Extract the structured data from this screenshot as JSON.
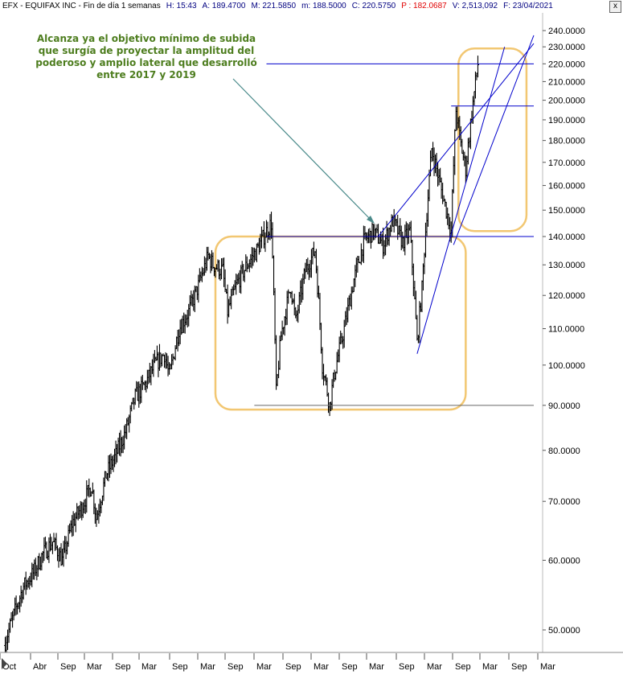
{
  "header": {
    "items": [
      {
        "text": "EFX - EQUIFAX INC - Fin de día 1 semanas",
        "color": "#000000"
      },
      {
        "text": "H: 15:43",
        "color": "#000080"
      },
      {
        "text": "A: 189.4700",
        "color": "#000080"
      },
      {
        "text": "M: 221.5850",
        "color": "#000080"
      },
      {
        "text": "m: 188.5000",
        "color": "#000080"
      },
      {
        "text": "C: 220.5750",
        "color": "#000080"
      },
      {
        "text": "P : 182.0687",
        "color": "#e00000"
      },
      {
        "text": "V: 2,513,092",
        "color": "#000080"
      },
      {
        "text": "F: 23/04/2021",
        "color": "#000080"
      }
    ],
    "close_label": "x"
  },
  "annotation": {
    "lines": [
      "Alcanza ya el objetivo mínimo de subida",
      "que surgía de proyectar la amplitud del",
      "poderoso y amplio lateral que desarrolló",
      "entre 2017 y 2019"
    ],
    "color": "#4d7d1e"
  },
  "chart_data": {
    "type": "bar",
    "style": "ohlc-weekly",
    "scale": "log",
    "ylim": [
      44,
      240
    ],
    "y_ticks": [
      50,
      60,
      70,
      80,
      90,
      100,
      110,
      120,
      130,
      140,
      150,
      160,
      170,
      180,
      190,
      200,
      210,
      220,
      230,
      240
    ],
    "y_tick_format": "4-decimals",
    "x_tick_labels": [
      "Oct",
      "Abr",
      "Sep",
      "Mar",
      "Sep",
      "Mar",
      "Sep",
      "Mar",
      "Sep",
      "Mar",
      "Sep",
      "Mar",
      "Sep",
      "Mar",
      "Sep",
      "Mar",
      "Sep",
      "Mar",
      "Sep",
      "Mar"
    ],
    "price_path": [
      [
        0,
        48
      ],
      [
        4,
        52
      ],
      [
        8,
        56
      ],
      [
        12,
        58
      ],
      [
        16,
        61
      ],
      [
        20,
        63
      ],
      [
        24,
        60
      ],
      [
        28,
        66
      ],
      [
        32,
        69
      ],
      [
        36,
        73
      ],
      [
        38,
        67
      ],
      [
        42,
        75
      ],
      [
        46,
        79
      ],
      [
        50,
        84
      ],
      [
        54,
        92
      ],
      [
        58,
        95
      ],
      [
        62,
        100
      ],
      [
        66,
        103
      ],
      [
        68,
        97
      ],
      [
        72,
        110
      ],
      [
        76,
        115
      ],
      [
        80,
        123
      ],
      [
        84,
        133
      ],
      [
        86,
        130
      ],
      [
        90,
        128
      ],
      [
        92,
        115
      ],
      [
        96,
        124
      ],
      [
        100,
        130
      ],
      [
        104,
        135
      ],
      [
        108,
        142
      ],
      [
        110,
        145
      ],
      [
        112,
        93
      ],
      [
        114,
        108
      ],
      [
        118,
        123
      ],
      [
        120,
        112
      ],
      [
        124,
        128
      ],
      [
        128,
        135
      ],
      [
        131,
        100
      ],
      [
        134,
        90
      ],
      [
        136,
        98
      ],
      [
        140,
        110
      ],
      [
        144,
        125
      ],
      [
        148,
        138
      ],
      [
        152,
        142
      ],
      [
        156,
        137
      ],
      [
        160,
        146
      ],
      [
        164,
        138
      ],
      [
        167,
        142
      ],
      [
        170,
        106
      ],
      [
        172,
        122
      ],
      [
        176,
        176
      ],
      [
        180,
        158
      ],
      [
        184,
        142
      ],
      [
        186,
        195
      ],
      [
        188,
        178
      ],
      [
        190,
        167
      ],
      [
        192,
        188
      ],
      [
        195,
        220
      ]
    ],
    "markers": {
      "trend_up_1_start": [
        170,
        103
      ],
      "trend_up_1_end": [
        206,
        230
      ],
      "trend_up_2_start": [
        154,
        140
      ],
      "trend_up_2_end": [
        218,
        232
      ],
      "trend_up_3_start": [
        185,
        137
      ],
      "trend_up_3_end": [
        218,
        237
      ]
    },
    "horizontal_levels": [
      {
        "value": 220,
        "x_from": 108,
        "x_to": 218
      },
      {
        "value": 197,
        "x_from": 184,
        "x_to": 218
      },
      {
        "value": 140,
        "x_from": 108,
        "x_to": 218
      },
      {
        "value": 90,
        "x_from": 103,
        "x_to": 218
      }
    ],
    "ranges": [
      {
        "x_from": 87,
        "x_to": 190,
        "y_low": 89,
        "y_high": 140
      },
      {
        "x_from": 187,
        "x_to": 215,
        "y_low": 142,
        "y_high": 229
      }
    ],
    "grid": false,
    "colors": {
      "bars": "#000000",
      "lines": "#0000cc",
      "boxes": "#f2c772",
      "arrow": "#4a8a8a"
    }
  }
}
